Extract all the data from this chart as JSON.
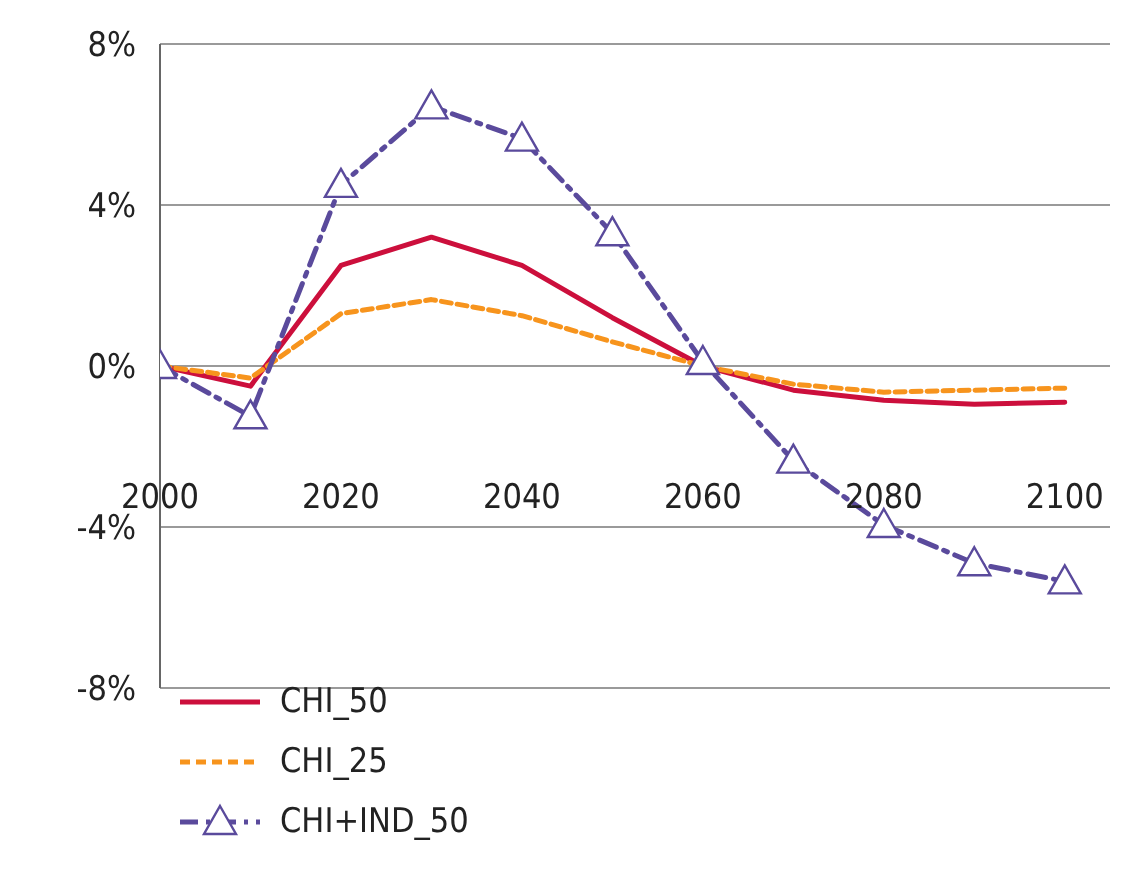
{
  "chart_data": {
    "type": "line",
    "x": [
      2000,
      2010,
      2020,
      2030,
      2040,
      2050,
      2060,
      2070,
      2080,
      2090,
      2100
    ],
    "series": [
      {
        "name": "CHI_50",
        "color": "#cc0f3c",
        "line_style": "solid",
        "marker": "none",
        "values": [
          0,
          -0.5,
          2.5,
          3.2,
          2.5,
          1.2,
          0,
          -0.6,
          -0.85,
          -0.95,
          -0.9
        ]
      },
      {
        "name": "CHI_25",
        "color": "#f7941d",
        "line_style": "dashed",
        "marker": "none",
        "values": [
          0,
          -0.3,
          1.3,
          1.65,
          1.25,
          0.6,
          0,
          -0.45,
          -0.65,
          -0.6,
          -0.55
        ]
      },
      {
        "name": "CHI+IND_50",
        "color": "#5a4a9c",
        "line_style": "dashdot",
        "marker": "triangle",
        "values": [
          0,
          -1.25,
          4.5,
          6.45,
          5.65,
          3.3,
          0.1,
          -2.35,
          -3.95,
          -4.9,
          -5.35
        ]
      }
    ],
    "xlim": [
      2000,
      2105
    ],
    "xticks": [
      2000,
      2020,
      2040,
      2060,
      2080,
      2100
    ],
    "ylim": [
      -8,
      8
    ],
    "yticks": [
      {
        "value": -8,
        "label": "-8%"
      },
      {
        "value": -4,
        "label": "-4%"
      },
      {
        "value": 0,
        "label": "0%"
      },
      {
        "value": 4,
        "label": "4%"
      },
      {
        "value": 8,
        "label": "8%"
      }
    ],
    "grid": "y",
    "legend": "bottom left"
  }
}
